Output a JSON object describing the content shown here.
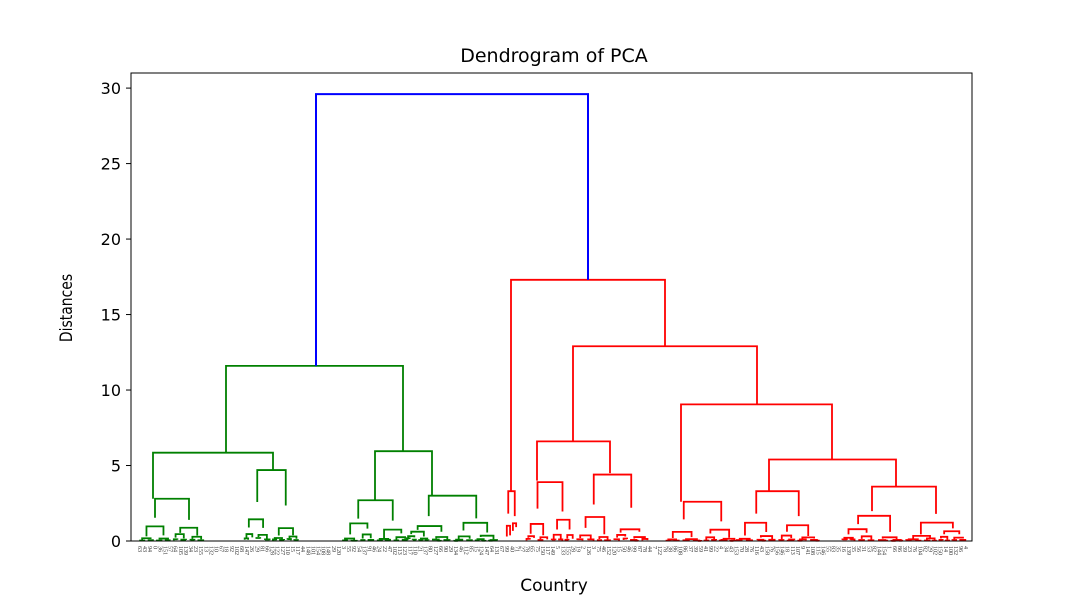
{
  "chart_data": {
    "type": "dendrogram",
    "title": "Dendrogram of PCA",
    "xlabel": "Country",
    "ylabel": "Distances",
    "ylim": [
      0,
      31
    ],
    "yticks": [
      0,
      5,
      10,
      15,
      20,
      25,
      30
    ],
    "grid": false,
    "colors": {
      "root": "#0000ff",
      "cluster_1": "#008000",
      "cluster_2": "#ff0000"
    },
    "root_merge_height": 29.6,
    "clusters": [
      {
        "color": "#008000",
        "merge_height": 11.6,
        "subclusters": [
          {
            "merge_height": 5.85,
            "children": [
              {
                "merge_height": 2.8
              },
              {
                "merge_height": 4.7
              }
            ]
          },
          {
            "merge_height": 5.95,
            "children": [
              {
                "merge_height": 2.7
              },
              {
                "merge_height": 3.0
              }
            ]
          }
        ]
      },
      {
        "color": "#ff0000",
        "merge_height": 17.3,
        "subclusters": [
          {
            "merge_height": 3.3
          },
          {
            "merge_height": 12.9,
            "children": [
              {
                "merge_height": 6.6
              },
              {
                "merge_height": 9.05,
                "children": [
                  {
                    "merge_height": 2.6
                  },
                  {
                    "merge_height": 5.4
                  }
                ]
              }
            ]
          }
        ]
      }
    ]
  }
}
